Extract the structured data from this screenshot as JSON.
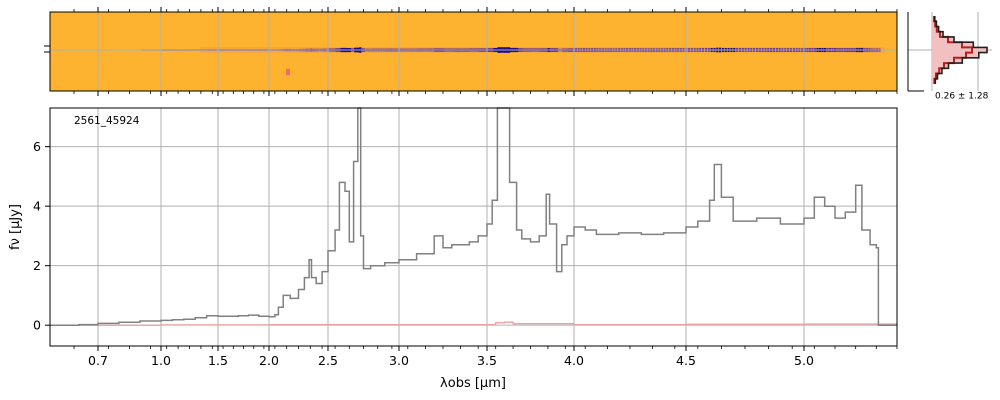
{
  "chart_data": [
    {
      "type": "heatmap",
      "description_colormap": "plasma_r",
      "colors": {
        "background": "#fdb32f",
        "trace": "#4b1fa0",
        "trace_core": "#1b0c8a",
        "grid": "#b0b0b0"
      }
    },
    {
      "type": "line",
      "title": "",
      "object_id": "2561_45924",
      "xlabel": "λobs [μm]",
      "ylabel": "fν [μJy]",
      "xlim": [
        0.6,
        5.45
      ],
      "ylim": [
        -0.7,
        7.3
      ],
      "x_scale": "nonlinear (pixel grid)",
      "x_ticks": [
        0.7,
        1.0,
        1.5,
        2.0,
        2.5,
        3.0,
        3.5,
        4.0,
        4.5,
        5.0
      ],
      "x_tick_labels": [
        "0.7",
        "1.0",
        "1.5",
        "2.0",
        "2.5",
        "3.0",
        "3.5",
        "4.0",
        "4.5",
        "5.0"
      ],
      "y_ticks": [
        0,
        2,
        4,
        6
      ],
      "y_tick_labels": [
        "0",
        "2",
        "4",
        "6"
      ],
      "grid": true,
      "colors": {
        "spectrum": "#808080",
        "uncertainty": "#e8a0a0"
      },
      "series": [
        {
          "values_xy": [
            [
              0.6,
              0.0
            ],
            [
              0.66,
              0.02
            ],
            [
              0.7,
              0.06
            ],
            [
              0.8,
              0.1
            ],
            [
              0.9,
              0.14
            ],
            [
              1.0,
              0.16
            ],
            [
              1.1,
              0.18
            ],
            [
              1.2,
              0.2
            ],
            [
              1.3,
              0.25
            ],
            [
              1.4,
              0.32
            ],
            [
              1.5,
              0.3
            ],
            [
              1.6,
              0.3
            ],
            [
              1.7,
              0.32
            ],
            [
              1.8,
              0.34
            ],
            [
              1.9,
              0.3
            ],
            [
              2.0,
              0.28
            ],
            [
              2.05,
              0.35
            ],
            [
              2.08,
              0.6
            ],
            [
              2.12,
              1.0
            ],
            [
              2.18,
              0.9
            ],
            [
              2.25,
              1.2
            ],
            [
              2.3,
              1.6
            ],
            [
              2.34,
              2.2
            ],
            [
              2.36,
              1.6
            ],
            [
              2.4,
              1.4
            ],
            [
              2.45,
              1.8
            ],
            [
              2.5,
              2.5
            ],
            [
              2.55,
              3.2
            ],
            [
              2.58,
              4.8
            ],
            [
              2.62,
              4.5
            ],
            [
              2.65,
              2.8
            ],
            [
              2.68,
              5.5
            ],
            [
              2.71,
              7.3
            ],
            [
              2.73,
              3.0
            ],
            [
              2.75,
              1.9
            ],
            [
              2.8,
              2.0
            ],
            [
              2.9,
              2.1
            ],
            [
              3.0,
              2.2
            ],
            [
              3.1,
              2.4
            ],
            [
              3.2,
              3.0
            ],
            [
              3.25,
              2.6
            ],
            [
              3.3,
              2.7
            ],
            [
              3.4,
              2.8
            ],
            [
              3.45,
              3.0
            ],
            [
              3.5,
              3.4
            ],
            [
              3.53,
              4.2
            ],
            [
              3.56,
              7.3
            ],
            [
              3.6,
              7.3
            ],
            [
              3.63,
              4.8
            ],
            [
              3.67,
              3.2
            ],
            [
              3.7,
              2.9
            ],
            [
              3.75,
              2.8
            ],
            [
              3.8,
              3.0
            ],
            [
              3.84,
              4.4
            ],
            [
              3.86,
              3.4
            ],
            [
              3.9,
              1.8
            ],
            [
              3.93,
              2.7
            ],
            [
              3.96,
              3.0
            ],
            [
              4.0,
              3.3
            ],
            [
              4.05,
              3.2
            ],
            [
              4.1,
              3.05
            ],
            [
              4.2,
              3.1
            ],
            [
              4.3,
              3.05
            ],
            [
              4.4,
              3.1
            ],
            [
              4.5,
              3.3
            ],
            [
              4.55,
              3.5
            ],
            [
              4.6,
              4.2
            ],
            [
              4.62,
              5.4
            ],
            [
              4.65,
              4.3
            ],
            [
              4.7,
              3.5
            ],
            [
              4.8,
              3.6
            ],
            [
              4.9,
              3.4
            ],
            [
              5.0,
              3.6
            ],
            [
              5.05,
              4.3
            ],
            [
              5.1,
              4.0
            ],
            [
              5.15,
              3.6
            ],
            [
              5.2,
              3.8
            ],
            [
              5.25,
              4.7
            ],
            [
              5.28,
              3.2
            ],
            [
              5.32,
              2.7
            ],
            [
              5.35,
              2.6
            ],
            [
              5.36,
              0.0
            ],
            [
              5.45,
              0.0
            ]
          ]
        },
        {
          "values_xy": [
            [
              0.6,
              0.0
            ],
            [
              1.0,
              0.01
            ],
            [
              2.0,
              0.02
            ],
            [
              3.0,
              0.02
            ],
            [
              3.55,
              0.08
            ],
            [
              3.6,
              0.1
            ],
            [
              3.65,
              0.05
            ],
            [
              4.0,
              0.02
            ],
            [
              4.5,
              0.03
            ],
            [
              5.0,
              0.04
            ],
            [
              5.36,
              0.04
            ],
            [
              5.45,
              0.0
            ]
          ]
        }
      ]
    },
    {
      "type": "histogram",
      "annotation": "0.26 ± 1.28",
      "colors": {
        "hist_dark": "#202020",
        "hist_red": "#b22222",
        "fill": "#f2c0c0"
      },
      "profile": [
        0.05,
        0.08,
        0.12,
        0.2,
        0.4,
        0.75,
        1.0,
        0.85,
        0.55,
        0.3,
        0.18,
        0.1,
        0.06
      ]
    }
  ]
}
